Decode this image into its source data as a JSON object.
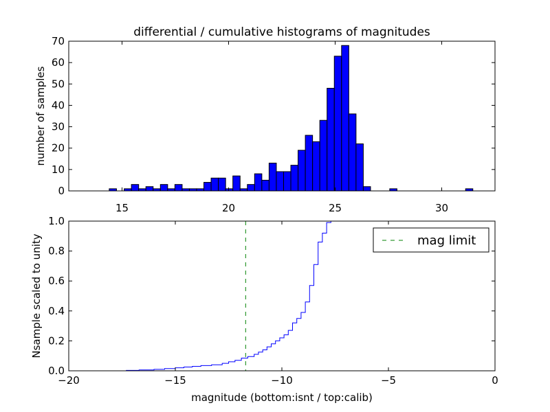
{
  "chart_data": [
    {
      "type": "bar",
      "title": "differential / cumulative histograms of magnitudes",
      "xlabel": "",
      "ylabel": "number of samples",
      "xlim": [
        12.5,
        32.5
      ],
      "ylim": [
        0,
        70
      ],
      "xticks": [
        "15",
        "20",
        "25",
        "30"
      ],
      "yticks": [
        "0",
        "10",
        "20",
        "30",
        "40",
        "50",
        "60",
        "70"
      ],
      "bar_color": "#0000ff",
      "bin_width": 0.34,
      "bins": [
        {
          "x": 14.4,
          "count": 1
        },
        {
          "x": 15.1,
          "count": 1
        },
        {
          "x": 15.44,
          "count": 3
        },
        {
          "x": 15.78,
          "count": 1
        },
        {
          "x": 16.12,
          "count": 2
        },
        {
          "x": 16.46,
          "count": 1
        },
        {
          "x": 16.8,
          "count": 3
        },
        {
          "x": 17.14,
          "count": 1
        },
        {
          "x": 17.48,
          "count": 3
        },
        {
          "x": 17.82,
          "count": 1
        },
        {
          "x": 18.16,
          "count": 1
        },
        {
          "x": 18.5,
          "count": 1
        },
        {
          "x": 18.84,
          "count": 4
        },
        {
          "x": 19.18,
          "count": 6
        },
        {
          "x": 19.52,
          "count": 6
        },
        {
          "x": 19.86,
          "count": 1
        },
        {
          "x": 20.2,
          "count": 7
        },
        {
          "x": 20.54,
          "count": 1
        },
        {
          "x": 20.88,
          "count": 3
        },
        {
          "x": 21.22,
          "count": 8
        },
        {
          "x": 21.56,
          "count": 5
        },
        {
          "x": 21.9,
          "count": 13
        },
        {
          "x": 22.24,
          "count": 9
        },
        {
          "x": 22.58,
          "count": 9
        },
        {
          "x": 22.92,
          "count": 12
        },
        {
          "x": 23.26,
          "count": 19
        },
        {
          "x": 23.6,
          "count": 26
        },
        {
          "x": 23.94,
          "count": 23
        },
        {
          "x": 24.28,
          "count": 33
        },
        {
          "x": 24.62,
          "count": 48
        },
        {
          "x": 24.96,
          "count": 63
        },
        {
          "x": 25.3,
          "count": 68
        },
        {
          "x": 25.64,
          "count": 36
        },
        {
          "x": 25.98,
          "count": 22
        },
        {
          "x": 26.32,
          "count": 2
        },
        {
          "x": 27.56,
          "count": 1
        },
        {
          "x": 31.12,
          "count": 1
        }
      ]
    },
    {
      "type": "line",
      "title": "",
      "xlabel": "magnitude (bottom:isnt / top:calib)",
      "ylabel": "Nsample scaled to unity",
      "xlim": [
        -20,
        0
      ],
      "ylim": [
        0,
        1.0
      ],
      "xticks": [
        "−20",
        "−15",
        "−10",
        "−5",
        "0"
      ],
      "yticks": [
        "0.0",
        "0.2",
        "0.4",
        "0.6",
        "0.8",
        "1.0"
      ],
      "series": [
        {
          "name": "",
          "color": "#0000ff",
          "style": "step",
          "points": [
            [
              -20.0,
              0.0
            ],
            [
              -17.3,
              0.003
            ],
            [
              -16.7,
              0.006
            ],
            [
              -16.0,
              0.01
            ],
            [
              -15.5,
              0.015
            ],
            [
              -15.0,
              0.02
            ],
            [
              -14.6,
              0.025
            ],
            [
              -14.2,
              0.03
            ],
            [
              -13.8,
              0.035
            ],
            [
              -13.3,
              0.04
            ],
            [
              -12.8,
              0.05
            ],
            [
              -12.5,
              0.06
            ],
            [
              -12.2,
              0.07
            ],
            [
              -11.9,
              0.085
            ],
            [
              -11.6,
              0.095
            ],
            [
              -11.3,
              0.11
            ],
            [
              -11.1,
              0.125
            ],
            [
              -10.9,
              0.14
            ],
            [
              -10.7,
              0.16
            ],
            [
              -10.5,
              0.18
            ],
            [
              -10.3,
              0.2
            ],
            [
              -10.1,
              0.22
            ],
            [
              -9.9,
              0.24
            ],
            [
              -9.7,
              0.27
            ],
            [
              -9.5,
              0.32
            ],
            [
              -9.3,
              0.35
            ],
            [
              -9.1,
              0.39
            ],
            [
              -8.9,
              0.46
            ],
            [
              -8.7,
              0.57
            ],
            [
              -8.5,
              0.71
            ],
            [
              -8.3,
              0.86
            ],
            [
              -8.1,
              0.92
            ],
            [
              -7.9,
              0.99
            ],
            [
              -7.7,
              1.0
            ],
            [
              0.0,
              1.0
            ]
          ]
        },
        {
          "name": "mag limit",
          "color": "#008000",
          "style": "dashed-vertical",
          "x": -11.7
        }
      ],
      "legend": {
        "position": "top-right",
        "entries": [
          "mag limit"
        ]
      }
    }
  ]
}
